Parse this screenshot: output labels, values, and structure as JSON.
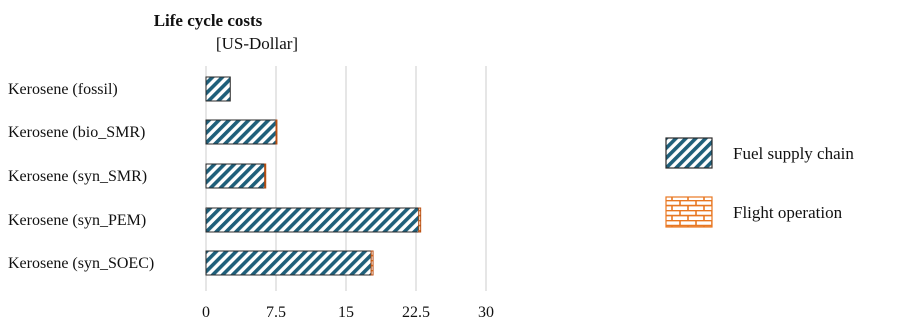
{
  "chart_data": {
    "type": "bar",
    "orientation": "horizontal",
    "stacked": true,
    "title": "Life cycle costs",
    "subtitle": "[US-Dollar]",
    "categories": [
      "Kerosene (fossil)",
      "Kerosene (bio_SMR)",
      "Kerosene (syn_SMR)",
      "Kerosene (syn_PEM)",
      "Kerosene (syn_SOEC)"
    ],
    "series": [
      {
        "name": "Fuel supply chain",
        "color": "#1f5f7a",
        "pattern": "diagonal-stripes",
        "values": [
          2.6,
          7.5,
          6.3,
          22.8,
          17.7
        ]
      },
      {
        "name": "Flight operation",
        "color": "#e87722",
        "pattern": "brick",
        "values": [
          0.0,
          0.1,
          0.1,
          0.2,
          0.2
        ]
      }
    ],
    "xlim": [
      0,
      30
    ],
    "x_ticks": [
      "0",
      "7.5",
      "15",
      "22.5",
      "30"
    ],
    "x_tick_values": [
      0,
      7.5,
      15,
      22.5,
      30
    ],
    "grid": true,
    "legend_position": "right"
  }
}
